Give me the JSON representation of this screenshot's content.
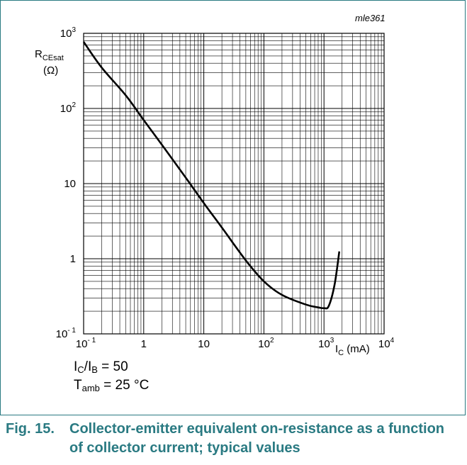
{
  "figure": {
    "code": "mle361",
    "number": "Fig. 15.",
    "caption": "Collector-emitter equivalent on-resistance as a function of collector current; typical values"
  },
  "conditions": {
    "ratio": {
      "num": "I",
      "num_sub": "C",
      "slash": "/I",
      "den_sub": "B",
      "rest": " = 50"
    },
    "temp": {
      "sym": "T",
      "sub": "amb",
      "rest": " = 25 °C"
    }
  },
  "chart_data": {
    "type": "line",
    "x_scale": "log",
    "y_scale": "log",
    "xlim": [
      0.1,
      10000
    ],
    "ylim": [
      0.1,
      1000
    ],
    "grid": true,
    "xlabel": {
      "sym": "I",
      "sub": "C",
      "unit": " (mA)"
    },
    "ylabel": {
      "sym": "R",
      "sub": "CEsat",
      "unit": "(Ω)"
    },
    "x_ticks": [
      {
        "value": 0.1,
        "base": "10",
        "exp": "- 1"
      },
      {
        "value": 1,
        "label": "1"
      },
      {
        "value": 10,
        "label": "10"
      },
      {
        "value": 100,
        "base": "10",
        "exp": "2"
      },
      {
        "value": 1000,
        "base": "10",
        "exp": "3"
      },
      {
        "value": 10000,
        "base": "10",
        "exp": "4"
      }
    ],
    "y_ticks": [
      {
        "value": 0.1,
        "base": "10",
        "exp": "- 1"
      },
      {
        "value": 1,
        "label": "1"
      },
      {
        "value": 10,
        "label": "10"
      },
      {
        "value": 100,
        "base": "10",
        "exp": "2"
      },
      {
        "value": 1000,
        "base": "10",
        "exp": "3"
      }
    ],
    "series": [
      {
        "x": [
          0.1,
          0.2,
          0.5,
          1,
          2,
          5,
          10,
          20,
          50,
          100,
          200,
          500,
          800,
          1000,
          1200,
          1500,
          1800
        ],
        "y": [
          770,
          350,
          150,
          70,
          33,
          12,
          5.5,
          2.6,
          0.95,
          0.5,
          0.33,
          0.245,
          0.225,
          0.22,
          0.235,
          0.45,
          1.25
        ]
      }
    ]
  }
}
